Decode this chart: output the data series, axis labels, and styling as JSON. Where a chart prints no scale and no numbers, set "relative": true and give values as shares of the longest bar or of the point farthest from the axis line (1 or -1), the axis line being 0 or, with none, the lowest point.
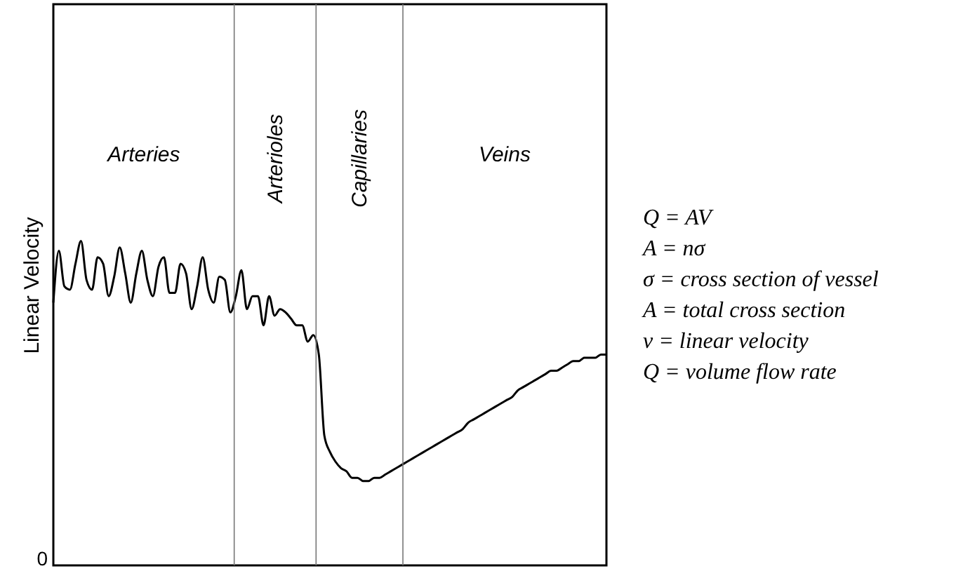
{
  "chart_data": {
    "type": "line",
    "relative": true,
    "ylabel": "Linear Velocity",
    "categories": [
      null,
      null,
      null,
      null,
      null,
      null,
      null,
      null,
      null,
      null,
      null,
      null,
      null,
      null,
      null,
      null,
      null,
      null,
      null,
      null,
      null,
      null,
      null,
      null,
      null,
      null,
      null,
      null,
      null,
      null,
      null,
      null,
      null,
      null,
      null,
      null,
      null,
      null,
      null,
      null,
      null,
      null,
      null,
      null,
      null,
      null,
      null,
      null,
      null,
      null,
      null,
      null,
      null,
      null,
      null,
      null,
      null,
      null,
      null,
      null,
      null,
      null,
      null,
      null,
      null,
      null,
      null,
      null,
      null,
      null,
      null,
      null,
      null,
      null,
      null,
      null,
      null,
      null,
      null,
      null,
      null,
      null,
      null,
      null,
      null,
      null,
      null,
      null,
      null,
      null,
      null,
      null,
      null,
      null,
      null,
      null,
      null,
      null,
      null,
      null,
      null
    ],
    "annotations": [
      "Arteries",
      "Arterioles",
      "Capillaries",
      "Veins",
      "0",
      "Q = AV",
      "A = nσ",
      "σ = cross section of vessel",
      "A = total cross section",
      "v = linear velocity",
      "Q = volume flow rate"
    ],
    "series": [
      {
        "color": "#000000",
        "values": [
          0.81,
          0.97,
          0.86,
          0.85,
          0.93,
          1.0,
          0.88,
          0.85,
          0.95,
          0.93,
          0.83,
          0.89,
          0.98,
          0.9,
          0.81,
          0.9,
          0.97,
          0.88,
          0.83,
          0.92,
          0.95,
          0.84,
          0.84,
          0.93,
          0.9,
          0.79,
          0.86,
          0.95,
          0.85,
          0.81,
          0.89,
          0.88,
          0.78,
          0.83,
          0.91,
          0.79,
          0.83,
          0.83,
          0.74,
          0.83,
          0.77,
          0.79,
          0.78,
          0.76,
          0.74,
          0.74,
          0.69,
          0.71,
          0.65,
          0.4,
          0.35,
          0.32,
          0.3,
          0.29,
          0.27,
          0.27,
          0.26,
          0.26,
          0.27,
          0.27,
          0.28,
          0.29,
          0.3,
          0.31,
          0.32,
          0.33,
          0.34,
          0.35,
          0.36,
          0.37,
          0.38,
          0.39,
          0.4,
          0.41,
          0.42,
          0.44,
          0.45,
          0.46,
          0.47,
          0.48,
          0.49,
          0.5,
          0.51,
          0.52,
          0.54,
          0.55,
          0.56,
          0.57,
          0.58,
          0.59,
          0.6,
          0.6,
          0.61,
          0.62,
          0.63,
          0.63,
          0.64,
          0.64,
          0.64,
          0.65,
          0.65
        ]
      }
    ]
  }
}
